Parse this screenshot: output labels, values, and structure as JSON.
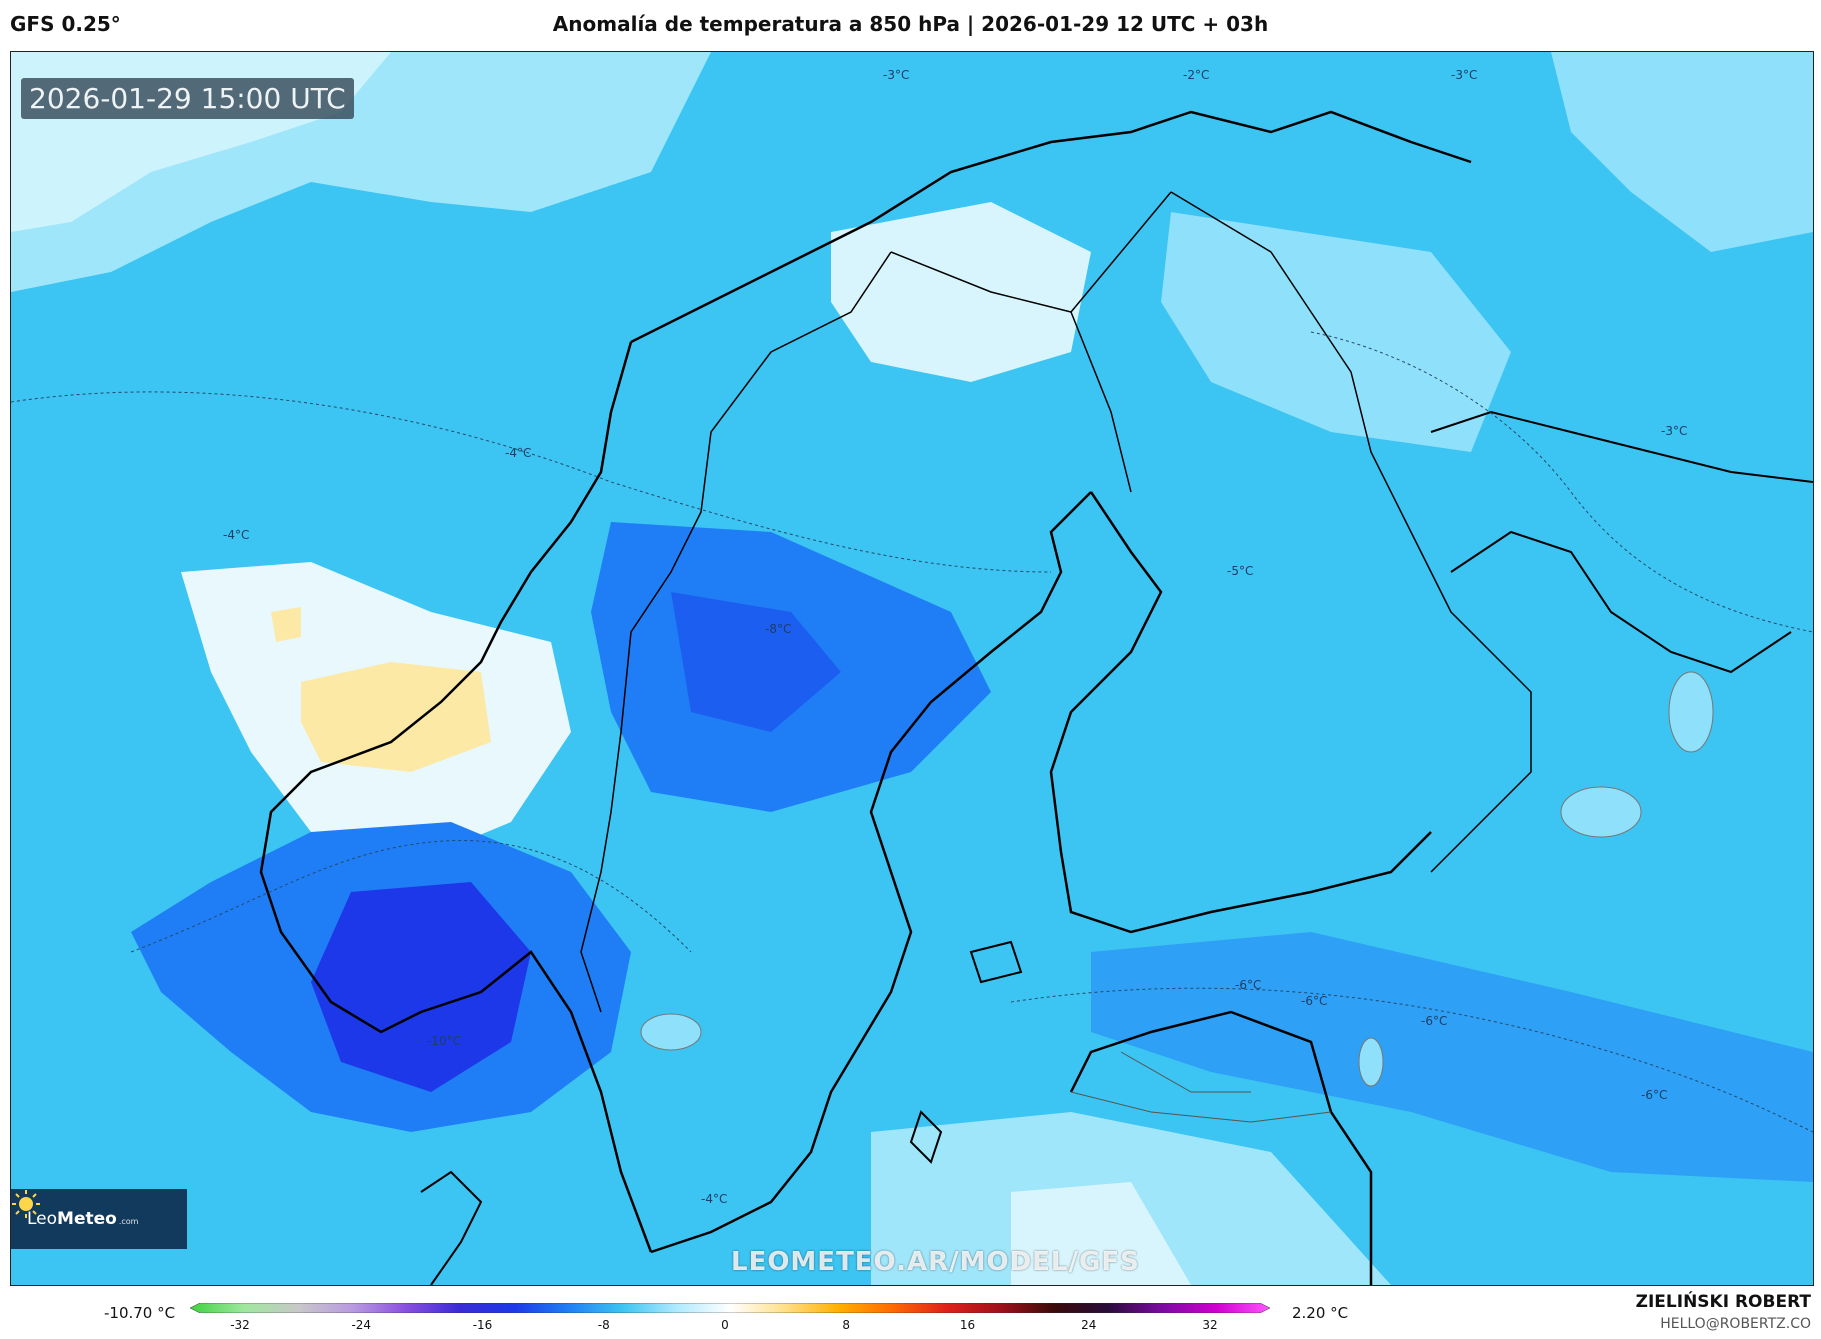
{
  "header": {
    "model": "GFS 0.25°",
    "title": "Anomalía de temperatura a 850 hPa | 2026-01-29 12 UTC + 03h"
  },
  "map": {
    "valid_time": "2026-01-29 15:00 UTC",
    "watermark": "LEOMETEO.AR/MODEL/GFS",
    "logo": {
      "name_a": "Leo",
      "name_b": "Meteo",
      "domain": ".com"
    },
    "contour_labels": [
      "-3°C",
      "-2°C",
      "-3°C",
      "-4°C",
      "-4°C",
      "-8°C",
      "-10°C",
      "-4°C",
      "-5°C",
      "-6°C",
      "-6°C",
      "-6°C",
      "-6°C",
      "-3°C"
    ]
  },
  "colorbar": {
    "min_label": "-10.70 °C",
    "max_label": "2.20 °C",
    "ticks": [
      "-32",
      "-24",
      "-16",
      "-8",
      "0",
      "8",
      "16",
      "24",
      "32"
    ],
    "colors": [
      "#3fd23f",
      "#9ee79e",
      "#c8c8c8",
      "#b99be0",
      "#8a4fe0",
      "#3a2ad6",
      "#1c38e8",
      "#1f7ef5",
      "#3cc4f2",
      "#aeeaff",
      "#ffffff",
      "#ffe08a",
      "#ffb000",
      "#ff6a00",
      "#e0201a",
      "#a0101a",
      "#3a0a0a",
      "#2a0c3a",
      "#7a0aa0",
      "#d000d0",
      "#ff55ff"
    ]
  },
  "credit": {
    "name": "ZIELIŃSKI ROBERT",
    "email": "HELLO@ROBERTZ.CO"
  }
}
